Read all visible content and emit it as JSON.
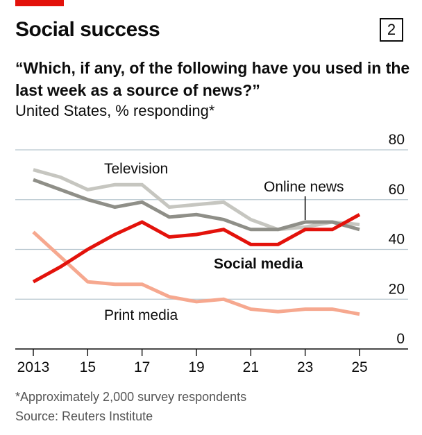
{
  "header": {
    "title": "Social success",
    "chart_number": "2",
    "subtitle": "“Which, if any, of the following have you used in the last week as a source of news?”",
    "units": "United States, % responding*"
  },
  "footer": {
    "footnote": "*Approximately 2,000 survey respondents",
    "source": "Source: Reuters Institute"
  },
  "chart_data": {
    "type": "line",
    "x": [
      2013,
      2014,
      2015,
      2016,
      2017,
      2018,
      2019,
      2020,
      2021,
      2022,
      2023,
      2024,
      2025
    ],
    "x_tick_values": [
      2013,
      2015,
      2017,
      2019,
      2021,
      2023,
      2025
    ],
    "x_tick_labels": [
      "2013",
      "15",
      "17",
      "19",
      "21",
      "23",
      "25"
    ],
    "ylim": [
      0,
      80
    ],
    "y_ticks": [
      0,
      20,
      40,
      60,
      80
    ],
    "grid": true,
    "series": [
      {
        "name": "Television",
        "color": "#c6c6c0",
        "bold": false,
        "values": [
          72,
          69,
          64,
          66,
          66,
          57,
          58,
          59,
          52,
          48,
          49,
          51,
          50
        ]
      },
      {
        "name": "Online news",
        "color": "#8f8f88",
        "bold": false,
        "values": [
          68,
          64,
          60,
          57,
          59,
          53,
          54,
          52,
          48,
          48,
          51,
          51,
          48
        ]
      },
      {
        "name": "Print media",
        "color": "#f6a88f",
        "bold": false,
        "values": [
          47,
          37,
          27,
          26,
          26,
          21,
          19,
          20,
          16,
          15,
          16,
          16,
          14
        ]
      },
      {
        "name": "Social media",
        "color": "#e3120b",
        "bold": true,
        "values": [
          27,
          33,
          40,
          46,
          51,
          45,
          46,
          48,
          42,
          42,
          48,
          48,
          54
        ]
      }
    ],
    "annotations": [
      {
        "series": "Television",
        "text": "Television"
      },
      {
        "series": "Online news",
        "text": "Online news",
        "pointer_x": 2023
      },
      {
        "series": "Social media",
        "text": "Social media"
      },
      {
        "series": "Print media",
        "text": "Print media"
      }
    ]
  }
}
